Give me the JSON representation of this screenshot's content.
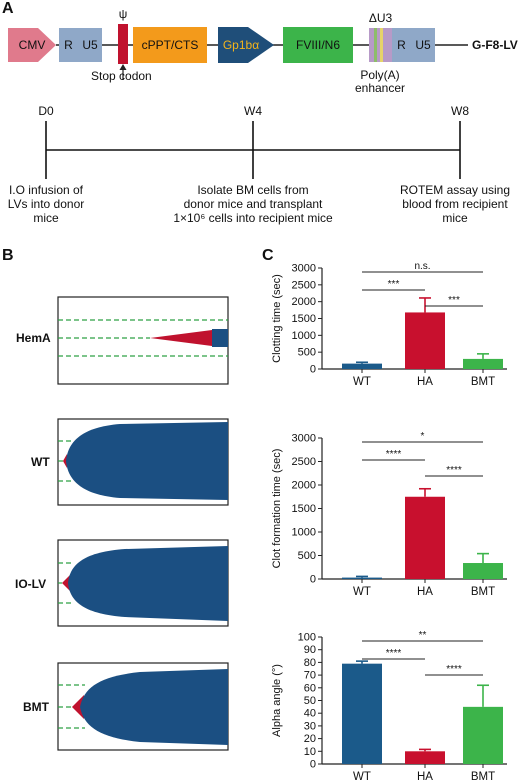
{
  "panels": {
    "A": "A",
    "B": "B",
    "C": "C"
  },
  "construct": {
    "cmv": "CMV",
    "r1": "R",
    "u51": "U5",
    "psi": "ψ",
    "cppt": "cPPT/CTS",
    "gp1b": "Gp1bα",
    "fviii": "FVIII/N6",
    "du3": "ΔU3",
    "r2": "R",
    "u52": "U5",
    "name": "G-F8-LV",
    "stop": "Stop codon",
    "polya": "Poly(A)",
    "enhancer": "enhancer",
    "colors": {
      "cmv": "#e07a8c",
      "ltr": "#8fa8c8",
      "stop": "#c0122e",
      "cppt": "#f39a1b",
      "gp1b": "#1f4e79",
      "fviii": "#3cb44a",
      "du3": "#b79ac8",
      "gp1b_text": "#f3b41b"
    }
  },
  "timeline": {
    "points": [
      "D0",
      "W4",
      "W8"
    ],
    "d0_lines": [
      "I.O infusion of",
      "LVs into donor",
      "mice"
    ],
    "w4_lines": [
      "Isolate BM cells from",
      "donor mice and transplant",
      "1×10⁶ cells into recipient mice"
    ],
    "w8_lines": [
      "ROTEM assay using",
      "blood from recipient",
      "mice"
    ]
  },
  "rotem": {
    "labels": [
      "HemA",
      "WT",
      "IO-LV",
      "BMT"
    ],
    "colors": {
      "clot": "#1b4f82",
      "initial": "#c0122e",
      "guide": "#2ea043"
    }
  },
  "chart_data": [
    {
      "type": "bar",
      "categories": [
        "WT",
        "HA",
        "BMT"
      ],
      "values": [
        160,
        1680,
        300
      ],
      "errors": [
        40,
        430,
        150
      ],
      "colors": [
        "#1b5a8a",
        "#c8102e",
        "#3cb44a"
      ],
      "ylabel": "Clotting time (sec)",
      "ylim": [
        0,
        3000
      ],
      "yticks": [
        0,
        500,
        1000,
        1500,
        2000,
        2500,
        3000
      ],
      "significance": [
        {
          "label": "n.s.",
          "from": 0,
          "to": 2
        },
        {
          "label": "***",
          "from": 0,
          "to": 1
        },
        {
          "label": "***",
          "from": 1,
          "to": 2
        }
      ]
    },
    {
      "type": "bar",
      "categories": [
        "WT",
        "HA",
        "BMT"
      ],
      "values": [
        30,
        1750,
        340
      ],
      "errors": [
        25,
        170,
        200
      ],
      "colors": [
        "#1b5a8a",
        "#c8102e",
        "#3cb44a"
      ],
      "ylabel": "Clot formation time (sec)",
      "ylim": [
        0,
        3000
      ],
      "yticks": [
        0,
        500,
        1000,
        1500,
        2000,
        2500,
        3000
      ],
      "significance": [
        {
          "label": "*",
          "from": 0,
          "to": 2
        },
        {
          "label": "****",
          "from": 0,
          "to": 1
        },
        {
          "label": "****",
          "from": 1,
          "to": 2
        }
      ]
    },
    {
      "type": "bar",
      "categories": [
        "WT",
        "HA",
        "BMT"
      ],
      "values": [
        79,
        10,
        45
      ],
      "errors": [
        2,
        1.5,
        17
      ],
      "colors": [
        "#1b5a8a",
        "#c8102e",
        "#3cb44a"
      ],
      "ylabel": "Alpha angle (°)",
      "ylim": [
        0,
        100
      ],
      "yticks": [
        0,
        10,
        20,
        30,
        40,
        50,
        60,
        70,
        80,
        90,
        100
      ],
      "significance": [
        {
          "label": "**",
          "from": 0,
          "to": 2
        },
        {
          "label": "****",
          "from": 0,
          "to": 1
        },
        {
          "label": "****",
          "from": 1,
          "to": 2
        }
      ]
    }
  ]
}
